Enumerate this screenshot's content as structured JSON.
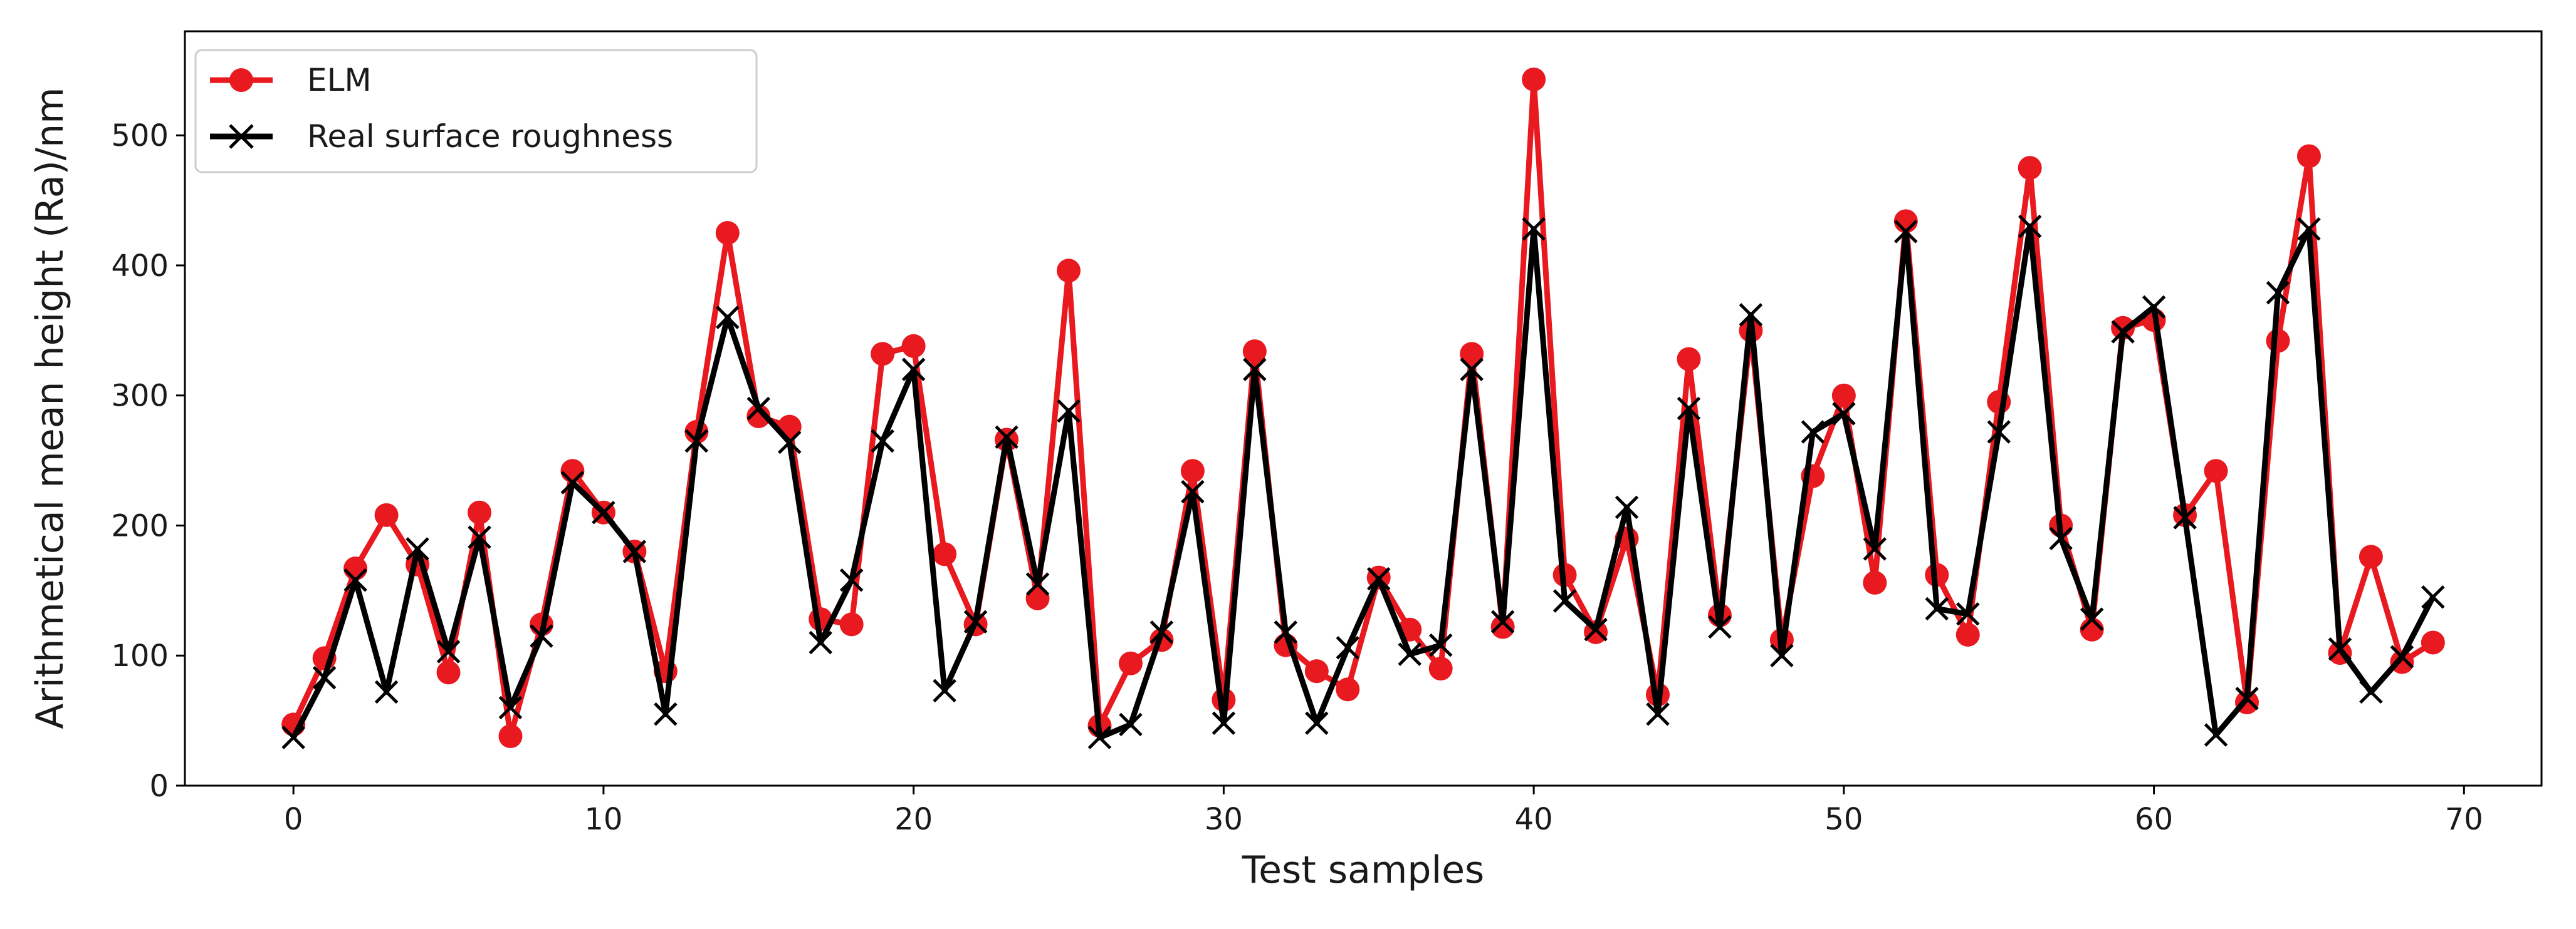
{
  "chart_data": {
    "type": "line",
    "title": "",
    "xlabel": "Test samples",
    "ylabel": "Arithmetical mean height (Ra)/nm",
    "xlim": [
      -3.5,
      72.5
    ],
    "ylim": [
      0,
      580
    ],
    "xticks": [
      0,
      10,
      20,
      30,
      40,
      50,
      60,
      70
    ],
    "yticks": [
      0,
      100,
      200,
      300,
      400,
      500
    ],
    "legend_position": "top-left",
    "x": [
      0,
      1,
      2,
      3,
      4,
      5,
      6,
      7,
      8,
      9,
      10,
      11,
      12,
      13,
      14,
      15,
      16,
      17,
      18,
      19,
      20,
      21,
      22,
      23,
      24,
      25,
      26,
      27,
      28,
      29,
      30,
      31,
      32,
      33,
      34,
      35,
      36,
      37,
      38,
      39,
      40,
      41,
      42,
      43,
      44,
      45,
      46,
      47,
      48,
      49,
      50,
      51,
      52,
      53,
      54,
      55,
      56,
      57,
      58,
      59,
      60,
      61,
      62,
      63,
      64,
      65,
      66,
      67,
      68,
      69
    ],
    "series": [
      {
        "name": "ELM",
        "color": "#e8191f",
        "marker": "circle",
        "values": [
          47,
          98,
          167,
          208,
          170,
          87,
          210,
          38,
          124,
          242,
          210,
          180,
          88,
          272,
          425,
          284,
          276,
          128,
          124,
          332,
          338,
          178,
          124,
          266,
          144,
          396,
          46,
          94,
          112,
          242,
          66,
          334,
          108,
          88,
          74,
          160,
          120,
          90,
          332,
          122,
          543,
          162,
          118,
          190,
          70,
          328,
          131,
          350,
          112,
          238,
          300,
          156,
          434,
          162,
          116,
          295,
          475,
          200,
          120,
          352,
          358,
          208,
          242,
          64,
          342,
          484,
          102,
          176,
          95,
          110
        ]
      },
      {
        "name": "Real surface roughness",
        "color": "#000000",
        "marker": "x",
        "values": [
          37,
          83,
          158,
          72,
          182,
          103,
          191,
          60,
          115,
          233,
          210,
          180,
          55,
          265,
          360,
          290,
          264,
          110,
          158,
          265,
          320,
          73,
          126,
          268,
          155,
          288,
          37,
          47,
          118,
          226,
          48,
          320,
          118,
          48,
          106,
          159,
          101,
          108,
          320,
          126,
          428,
          142,
          120,
          214,
          55,
          290,
          122,
          362,
          100,
          272,
          286,
          182,
          426,
          136,
          132,
          272,
          430,
          190,
          128,
          349,
          368,
          206,
          39,
          67,
          379,
          428,
          105,
          72,
          99,
          145
        ]
      }
    ]
  }
}
